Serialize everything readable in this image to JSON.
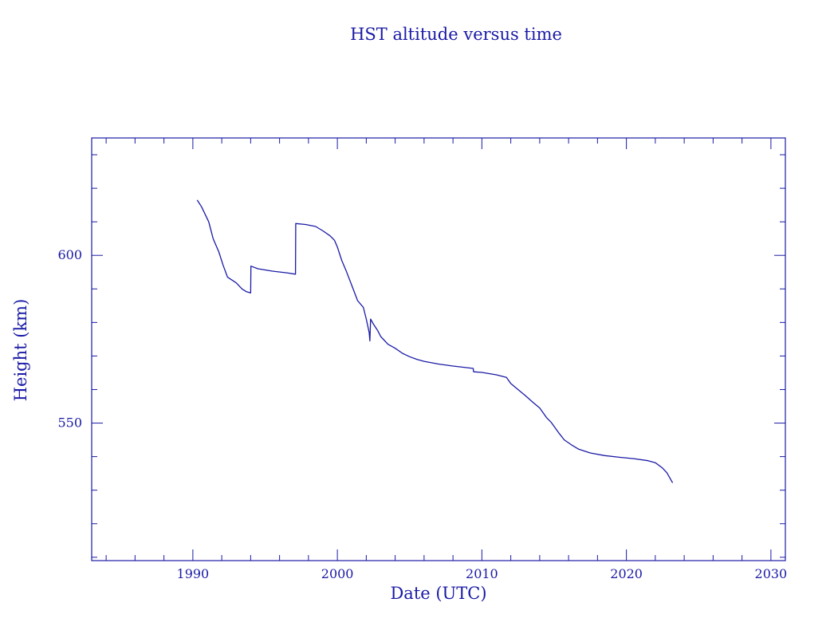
{
  "chart_data": {
    "type": "line",
    "title": "HST altitude versus time",
    "xlabel": "Date (UTC)",
    "ylabel": "Height (km)",
    "xlim": [
      1983,
      2031
    ],
    "ylim": [
      509,
      635
    ],
    "x_ticks": [
      1990,
      2000,
      2010,
      2020,
      2030
    ],
    "x_minor_step": 2,
    "y_ticks": [
      550,
      600
    ],
    "y_minor_step": 10,
    "grid": false,
    "series": [
      {
        "points": [
          [
            1990.3,
            616.5
          ],
          [
            1990.6,
            614.5
          ],
          [
            1991.1,
            610
          ],
          [
            1991.4,
            605
          ],
          [
            1991.8,
            601
          ],
          [
            1992.1,
            597
          ],
          [
            1992.4,
            593.5
          ],
          [
            1993.0,
            591.8
          ],
          [
            1993.4,
            590.0
          ],
          [
            1993.7,
            589.2
          ],
          [
            1994.0,
            588.8
          ],
          [
            1994.02,
            596.8
          ],
          [
            1994.5,
            596.0
          ],
          [
            1995.5,
            595.3
          ],
          [
            1996.5,
            594.8
          ],
          [
            1997.1,
            594.4
          ],
          [
            1997.12,
            609.5
          ],
          [
            1997.8,
            609.2
          ],
          [
            1998.5,
            608.6
          ],
          [
            1999.0,
            607.3
          ],
          [
            1999.5,
            605.8
          ],
          [
            1999.8,
            604.5
          ],
          [
            2000.0,
            602.5
          ],
          [
            2000.3,
            598.5
          ],
          [
            2000.6,
            595.5
          ],
          [
            2001.0,
            591
          ],
          [
            2001.4,
            586.5
          ],
          [
            2001.8,
            584.5
          ],
          [
            2002.0,
            581
          ],
          [
            2002.2,
            577
          ],
          [
            2002.25,
            574.5
          ],
          [
            2002.3,
            581
          ],
          [
            2002.5,
            579.5
          ],
          [
            2002.8,
            577.5
          ],
          [
            2003.0,
            575.8
          ],
          [
            2003.5,
            573.5
          ],
          [
            2004.0,
            572.3
          ],
          [
            2004.5,
            570.8
          ],
          [
            2005.0,
            569.8
          ],
          [
            2005.5,
            569.0
          ],
          [
            2006.0,
            568.4
          ],
          [
            2007.0,
            567.6
          ],
          [
            2008.0,
            567.0
          ],
          [
            2009.0,
            566.5
          ],
          [
            2009.4,
            566.3
          ],
          [
            2009.42,
            565.3
          ],
          [
            2010.0,
            565.1
          ],
          [
            2011.0,
            564.4
          ],
          [
            2011.7,
            563.6
          ],
          [
            2012.0,
            561.8
          ],
          [
            2012.5,
            560.0
          ],
          [
            2013.0,
            558.2
          ],
          [
            2013.5,
            556.3
          ],
          [
            2014.0,
            554.5
          ],
          [
            2014.5,
            551.5
          ],
          [
            2014.8,
            550.2
          ],
          [
            2015.3,
            547.2
          ],
          [
            2015.7,
            545.0
          ],
          [
            2016.2,
            543.5
          ],
          [
            2016.7,
            542.2
          ],
          [
            2017.5,
            541.1
          ],
          [
            2018.5,
            540.3
          ],
          [
            2019.5,
            539.8
          ],
          [
            2020.5,
            539.4
          ],
          [
            2021.5,
            538.8
          ],
          [
            2022.0,
            538.2
          ],
          [
            2022.5,
            536.6
          ],
          [
            2022.8,
            535.2
          ],
          [
            2023.2,
            532.2
          ]
        ]
      }
    ]
  }
}
